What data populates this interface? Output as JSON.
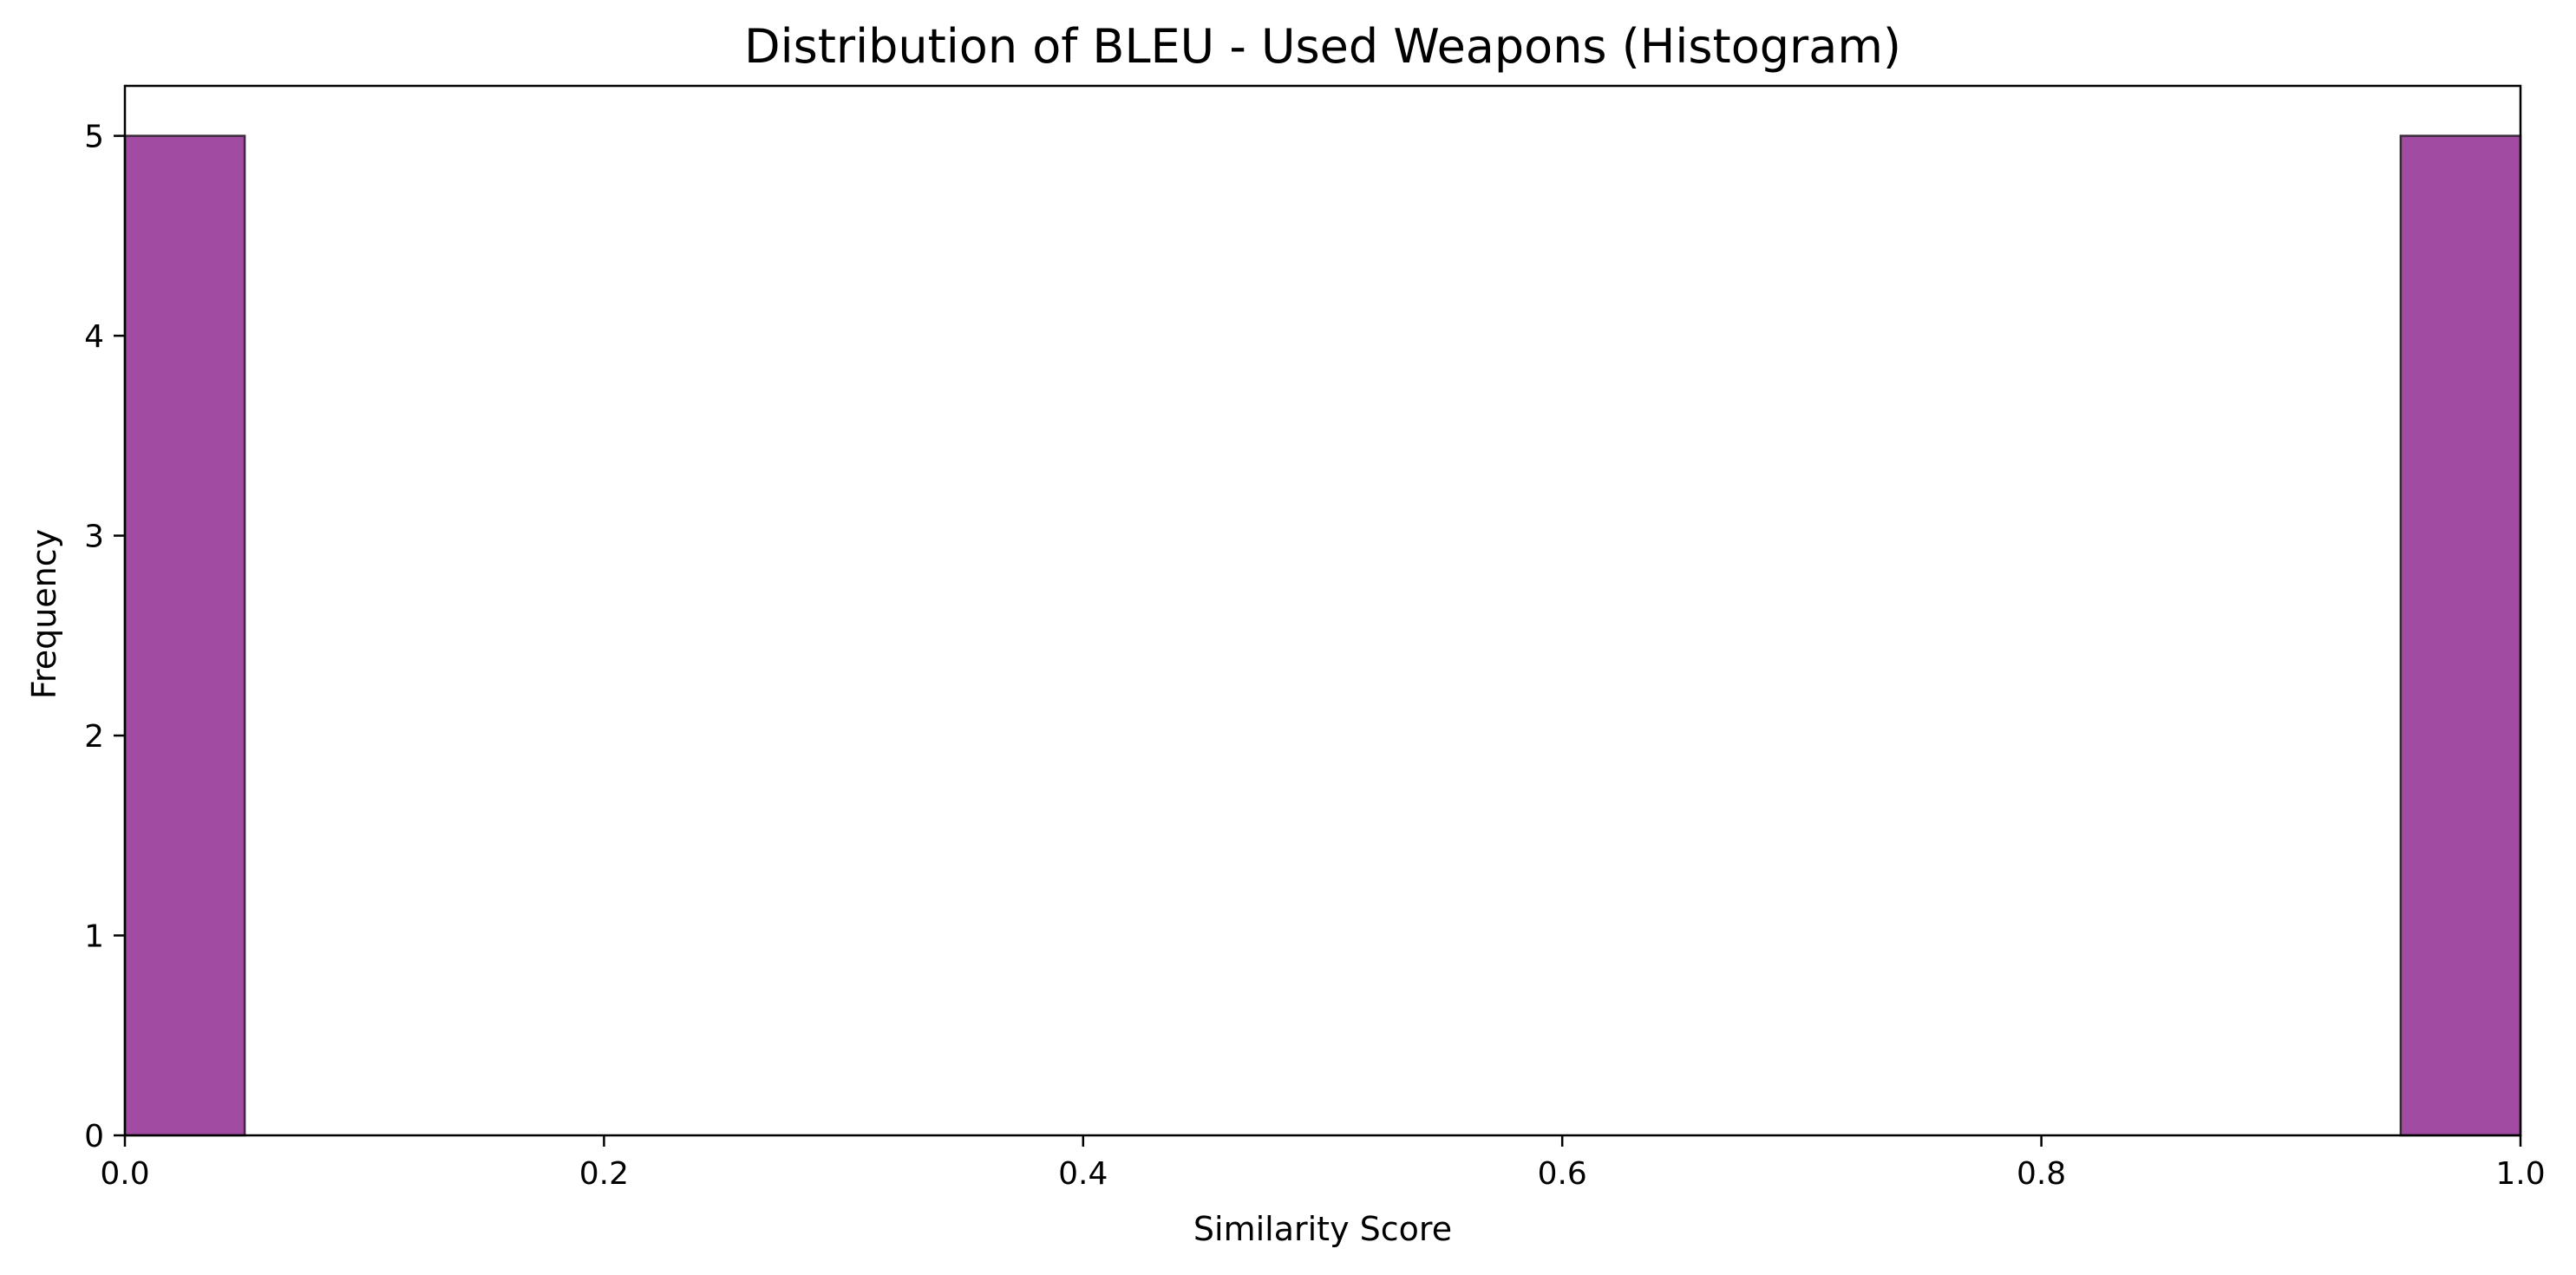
{
  "chart_data": {
    "type": "bar",
    "title": "Distribution of BLEU - Used Weapons (Histogram)",
    "xlabel": "Similarity Score",
    "ylabel": "Frequency",
    "xlim": [
      0.0,
      1.0
    ],
    "ylim": [
      0,
      5.25
    ],
    "x_ticks": [
      "0.0",
      "0.2",
      "0.4",
      "0.6",
      "0.8",
      "1.0"
    ],
    "x_tick_values": [
      0.0,
      0.2,
      0.4,
      0.6,
      0.8,
      1.0
    ],
    "y_ticks": [
      "0",
      "1",
      "2",
      "3",
      "4",
      "5"
    ],
    "y_tick_values": [
      0,
      1,
      2,
      3,
      4,
      5
    ],
    "bar_color": "#a24ba3",
    "bar_edge_color": "#3a2a3a",
    "grid": false,
    "bins": [
      {
        "x0": 0.0,
        "x1": 0.05,
        "count": 5
      },
      {
        "x0": 0.95,
        "x1": 1.0,
        "count": 5
      }
    ]
  }
}
